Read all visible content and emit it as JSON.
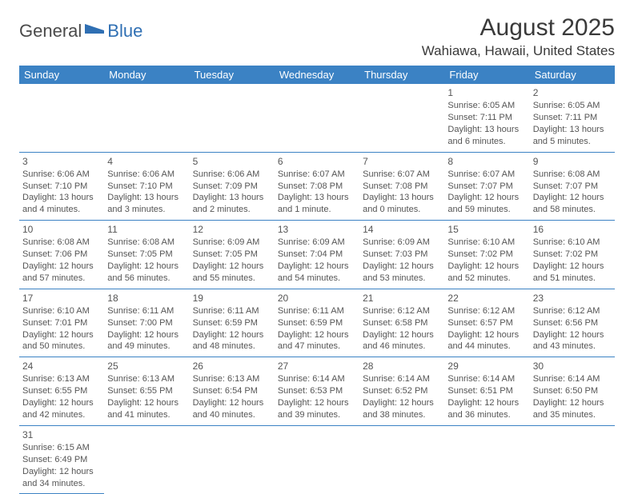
{
  "logo": {
    "general": "General",
    "blue": "Blue"
  },
  "title": "August 2025",
  "location": "Wahiawa, Hawaii, United States",
  "headers": [
    "Sunday",
    "Monday",
    "Tuesday",
    "Wednesday",
    "Thursday",
    "Friday",
    "Saturday"
  ],
  "colors": {
    "header_bg": "#3b82c4",
    "header_fg": "#ffffff",
    "border": "#3b82c4",
    "text": "#555555",
    "title": "#3a3a3a",
    "logo_blue": "#2f6fb3"
  },
  "weeks": [
    [
      null,
      null,
      null,
      null,
      null,
      {
        "n": "1",
        "sr": "Sunrise: 6:05 AM",
        "ss": "Sunset: 7:11 PM",
        "d1": "Daylight: 13 hours",
        "d2": "and 6 minutes."
      },
      {
        "n": "2",
        "sr": "Sunrise: 6:05 AM",
        "ss": "Sunset: 7:11 PM",
        "d1": "Daylight: 13 hours",
        "d2": "and 5 minutes."
      }
    ],
    [
      {
        "n": "3",
        "sr": "Sunrise: 6:06 AM",
        "ss": "Sunset: 7:10 PM",
        "d1": "Daylight: 13 hours",
        "d2": "and 4 minutes."
      },
      {
        "n": "4",
        "sr": "Sunrise: 6:06 AM",
        "ss": "Sunset: 7:10 PM",
        "d1": "Daylight: 13 hours",
        "d2": "and 3 minutes."
      },
      {
        "n": "5",
        "sr": "Sunrise: 6:06 AM",
        "ss": "Sunset: 7:09 PM",
        "d1": "Daylight: 13 hours",
        "d2": "and 2 minutes."
      },
      {
        "n": "6",
        "sr": "Sunrise: 6:07 AM",
        "ss": "Sunset: 7:08 PM",
        "d1": "Daylight: 13 hours",
        "d2": "and 1 minute."
      },
      {
        "n": "7",
        "sr": "Sunrise: 6:07 AM",
        "ss": "Sunset: 7:08 PM",
        "d1": "Daylight: 13 hours",
        "d2": "and 0 minutes."
      },
      {
        "n": "8",
        "sr": "Sunrise: 6:07 AM",
        "ss": "Sunset: 7:07 PM",
        "d1": "Daylight: 12 hours",
        "d2": "and 59 minutes."
      },
      {
        "n": "9",
        "sr": "Sunrise: 6:08 AM",
        "ss": "Sunset: 7:07 PM",
        "d1": "Daylight: 12 hours",
        "d2": "and 58 minutes."
      }
    ],
    [
      {
        "n": "10",
        "sr": "Sunrise: 6:08 AM",
        "ss": "Sunset: 7:06 PM",
        "d1": "Daylight: 12 hours",
        "d2": "and 57 minutes."
      },
      {
        "n": "11",
        "sr": "Sunrise: 6:08 AM",
        "ss": "Sunset: 7:05 PM",
        "d1": "Daylight: 12 hours",
        "d2": "and 56 minutes."
      },
      {
        "n": "12",
        "sr": "Sunrise: 6:09 AM",
        "ss": "Sunset: 7:05 PM",
        "d1": "Daylight: 12 hours",
        "d2": "and 55 minutes."
      },
      {
        "n": "13",
        "sr": "Sunrise: 6:09 AM",
        "ss": "Sunset: 7:04 PM",
        "d1": "Daylight: 12 hours",
        "d2": "and 54 minutes."
      },
      {
        "n": "14",
        "sr": "Sunrise: 6:09 AM",
        "ss": "Sunset: 7:03 PM",
        "d1": "Daylight: 12 hours",
        "d2": "and 53 minutes."
      },
      {
        "n": "15",
        "sr": "Sunrise: 6:10 AM",
        "ss": "Sunset: 7:02 PM",
        "d1": "Daylight: 12 hours",
        "d2": "and 52 minutes."
      },
      {
        "n": "16",
        "sr": "Sunrise: 6:10 AM",
        "ss": "Sunset: 7:02 PM",
        "d1": "Daylight: 12 hours",
        "d2": "and 51 minutes."
      }
    ],
    [
      {
        "n": "17",
        "sr": "Sunrise: 6:10 AM",
        "ss": "Sunset: 7:01 PM",
        "d1": "Daylight: 12 hours",
        "d2": "and 50 minutes."
      },
      {
        "n": "18",
        "sr": "Sunrise: 6:11 AM",
        "ss": "Sunset: 7:00 PM",
        "d1": "Daylight: 12 hours",
        "d2": "and 49 minutes."
      },
      {
        "n": "19",
        "sr": "Sunrise: 6:11 AM",
        "ss": "Sunset: 6:59 PM",
        "d1": "Daylight: 12 hours",
        "d2": "and 48 minutes."
      },
      {
        "n": "20",
        "sr": "Sunrise: 6:11 AM",
        "ss": "Sunset: 6:59 PM",
        "d1": "Daylight: 12 hours",
        "d2": "and 47 minutes."
      },
      {
        "n": "21",
        "sr": "Sunrise: 6:12 AM",
        "ss": "Sunset: 6:58 PM",
        "d1": "Daylight: 12 hours",
        "d2": "and 46 minutes."
      },
      {
        "n": "22",
        "sr": "Sunrise: 6:12 AM",
        "ss": "Sunset: 6:57 PM",
        "d1": "Daylight: 12 hours",
        "d2": "and 44 minutes."
      },
      {
        "n": "23",
        "sr": "Sunrise: 6:12 AM",
        "ss": "Sunset: 6:56 PM",
        "d1": "Daylight: 12 hours",
        "d2": "and 43 minutes."
      }
    ],
    [
      {
        "n": "24",
        "sr": "Sunrise: 6:13 AM",
        "ss": "Sunset: 6:55 PM",
        "d1": "Daylight: 12 hours",
        "d2": "and 42 minutes."
      },
      {
        "n": "25",
        "sr": "Sunrise: 6:13 AM",
        "ss": "Sunset: 6:55 PM",
        "d1": "Daylight: 12 hours",
        "d2": "and 41 minutes."
      },
      {
        "n": "26",
        "sr": "Sunrise: 6:13 AM",
        "ss": "Sunset: 6:54 PM",
        "d1": "Daylight: 12 hours",
        "d2": "and 40 minutes."
      },
      {
        "n": "27",
        "sr": "Sunrise: 6:14 AM",
        "ss": "Sunset: 6:53 PM",
        "d1": "Daylight: 12 hours",
        "d2": "and 39 minutes."
      },
      {
        "n": "28",
        "sr": "Sunrise: 6:14 AM",
        "ss": "Sunset: 6:52 PM",
        "d1": "Daylight: 12 hours",
        "d2": "and 38 minutes."
      },
      {
        "n": "29",
        "sr": "Sunrise: 6:14 AM",
        "ss": "Sunset: 6:51 PM",
        "d1": "Daylight: 12 hours",
        "d2": "and 36 minutes."
      },
      {
        "n": "30",
        "sr": "Sunrise: 6:14 AM",
        "ss": "Sunset: 6:50 PM",
        "d1": "Daylight: 12 hours",
        "d2": "and 35 minutes."
      }
    ],
    [
      {
        "n": "31",
        "sr": "Sunrise: 6:15 AM",
        "ss": "Sunset: 6:49 PM",
        "d1": "Daylight: 12 hours",
        "d2": "and 34 minutes."
      },
      null,
      null,
      null,
      null,
      null,
      null
    ]
  ]
}
